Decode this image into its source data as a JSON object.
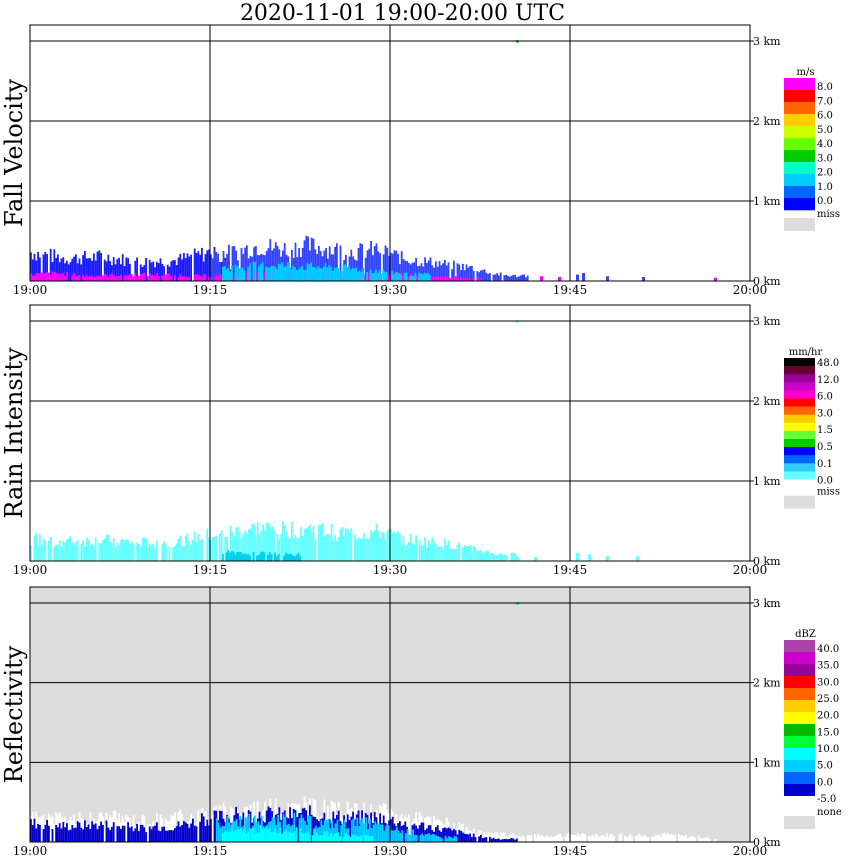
{
  "title": "2020-11-01   19:00-20:00 UTC",
  "chart_data": [
    {
      "type": "heatmap",
      "name": "fall-velocity",
      "panel_label": "Fall Velocity",
      "x": {
        "label": "",
        "ticks": [
          "19:00",
          "19:15",
          "19:30",
          "19:45",
          "20:00"
        ],
        "range_min": [
          0,
          60
        ]
      },
      "y": {
        "label": "",
        "ticks": [
          "0 km",
          "1 km",
          "2 km",
          "3 km"
        ],
        "range_km": [
          0,
          3.2
        ]
      },
      "background": "#ffffff",
      "grid": true,
      "legend": {
        "unit": "m/s",
        "position": "right",
        "labels": [
          "8.0",
          "7.0",
          "6.0",
          "5.0",
          "4.0",
          "3.0",
          "2.0",
          "1.0",
          "0.0"
        ],
        "colors": [
          "#ff00ff",
          "#ff0000",
          "#ff6600",
          "#ffcc00",
          "#ccff00",
          "#66ff00",
          "#00cc00",
          "#00ffcc",
          "#00ccff",
          "#0066ff",
          "#0000ff"
        ],
        "miss_label": "miss",
        "miss_color": "#dddddd"
      },
      "layers": [
        {
          "color": "#1a1aff",
          "segments": [
            [
              0,
              0.45
            ],
            [
              3,
              0.35
            ],
            [
              6,
              0.38
            ],
            [
              9,
              0.3
            ],
            [
              12,
              0.32
            ],
            [
              15,
              0.45
            ],
            [
              17,
              0.2
            ],
            [
              18,
              0.1
            ],
            [
              19,
              0.1
            ],
            [
              20,
              0.15
            ],
            [
              22,
              0.2
            ]
          ]
        },
        {
          "color": "#3344ff",
          "segments": [
            [
              15,
              0.42
            ],
            [
              17,
              0.45
            ],
            [
              19,
              0.55
            ],
            [
              21,
              0.5
            ],
            [
              23,
              0.55
            ],
            [
              25,
              0.5
            ],
            [
              27,
              0.45
            ],
            [
              29,
              0.5
            ],
            [
              31,
              0.35
            ],
            [
              33,
              0.3
            ],
            [
              35,
              0.25
            ],
            [
              37,
              0.2
            ],
            [
              38.5,
              0.12
            ],
            [
              40,
              0.08
            ]
          ]
        },
        {
          "color": "#ff00ff",
          "segments": [
            [
              0,
              0.1
            ],
            [
              2,
              0.12
            ],
            [
              5,
              0.08
            ],
            [
              8,
              0.1
            ],
            [
              11,
              0.1
            ],
            [
              15,
              0.08
            ],
            [
              20,
              0.12
            ],
            [
              25,
              0.08
            ],
            [
              30,
              0.12
            ],
            [
              33,
              0.08
            ],
            [
              36,
              0.05
            ]
          ]
        },
        {
          "color": "#00ccff",
          "segments": [
            [
              16,
              0.2
            ],
            [
              20,
              0.25
            ],
            [
              24,
              0.22
            ],
            [
              28,
              0.18
            ],
            [
              32,
              0.1
            ]
          ]
        }
      ],
      "sparse_marks": [
        {
          "t": 41,
          "h": 0.08,
          "color": "#3344ff"
        },
        {
          "t": 42.5,
          "h": 0.06,
          "color": "#ff00ff"
        },
        {
          "t": 44,
          "h": 0.05,
          "color": "#ff00ff"
        },
        {
          "t": 45.5,
          "h": 0.08,
          "color": "#3344ff"
        },
        {
          "t": 46,
          "h": 0.1,
          "color": "#3344ff"
        },
        {
          "t": 48,
          "h": 0.06,
          "color": "#3344ff"
        },
        {
          "t": 51,
          "h": 0.05,
          "color": "#3344ff"
        },
        {
          "t": 57,
          "h": 0.04,
          "color": "#ff00ff"
        },
        {
          "t": 40.5,
          "h": 0.03,
          "color": "#00cc00",
          "base": 2.98
        }
      ]
    },
    {
      "type": "heatmap",
      "name": "rain-intensity",
      "panel_label": "Rain Intensity",
      "x": {
        "label": "",
        "ticks": [
          "19:00",
          "19:15",
          "19:30",
          "19:45",
          "20:00"
        ],
        "range_min": [
          0,
          60
        ]
      },
      "y": {
        "label": "",
        "ticks": [
          "0 km",
          "1 km",
          "2 km",
          "3 km"
        ],
        "range_km": [
          0,
          3.2
        ]
      },
      "background": "#ffffff",
      "grid": true,
      "legend": {
        "unit": "mm/hr",
        "position": "right",
        "labels": [
          "48.0",
          "12.0",
          "6.0",
          "3.0",
          "1.5",
          "0.5",
          "0.1",
          "0.0"
        ],
        "colors": [
          "#000000",
          "#660033",
          "#990099",
          "#cc00cc",
          "#ff00cc",
          "#ff0000",
          "#ff6600",
          "#ffcc00",
          "#ffff00",
          "#66ff33",
          "#00cc00",
          "#0000ff",
          "#0066ff",
          "#33ccff",
          "#66ffff",
          "#ffffff"
        ],
        "miss_label": "miss",
        "miss_color": "#dddddd"
      },
      "layers": [
        {
          "color": "#66ffff",
          "segments": [
            [
              0,
              0.35
            ],
            [
              3,
              0.3
            ],
            [
              6,
              0.32
            ],
            [
              9,
              0.28
            ],
            [
              12,
              0.3
            ],
            [
              15,
              0.4
            ],
            [
              17,
              0.45
            ],
            [
              19,
              0.5
            ],
            [
              21,
              0.48
            ],
            [
              23,
              0.5
            ],
            [
              25,
              0.45
            ],
            [
              27,
              0.42
            ],
            [
              29,
              0.45
            ],
            [
              31,
              0.35
            ],
            [
              33,
              0.3
            ],
            [
              35,
              0.25
            ],
            [
              37,
              0.18
            ],
            [
              39,
              0.1
            ]
          ]
        },
        {
          "color": "#00ccee",
          "segments": [
            [
              16,
              0.15
            ],
            [
              19,
              0.12
            ],
            [
              21,
              0.1
            ]
          ]
        }
      ],
      "sparse_marks": [
        {
          "t": 40.5,
          "h": 0.05,
          "color": "#66ffff"
        },
        {
          "t": 42,
          "h": 0.05,
          "color": "#66ffff"
        },
        {
          "t": 45.5,
          "h": 0.1,
          "color": "#66ffff"
        },
        {
          "t": 46.5,
          "h": 0.08,
          "color": "#66ffff"
        },
        {
          "t": 48,
          "h": 0.06,
          "color": "#66ffff"
        },
        {
          "t": 50.5,
          "h": 0.06,
          "color": "#66ffff"
        },
        {
          "t": 40.5,
          "h": 0.03,
          "color": "#66ffff",
          "base": 2.98
        }
      ]
    },
    {
      "type": "heatmap",
      "name": "reflectivity",
      "panel_label": "Reflectivity",
      "x": {
        "label": "",
        "ticks": [
          "19:00",
          "19:15",
          "19:30",
          "19:45",
          "20:00"
        ],
        "range_min": [
          0,
          60
        ]
      },
      "y": {
        "label": "",
        "ticks": [
          "0 km",
          "1 km",
          "2 km",
          "3 km"
        ],
        "range_km": [
          0,
          3.2
        ]
      },
      "background": "#dddddd",
      "grid": true,
      "legend": {
        "unit": "dBZ",
        "position": "right",
        "labels": [
          "40.0",
          "35.0",
          "30.0",
          "25.0",
          "20.0",
          "15.0",
          "10.0",
          "5.0",
          "0.0",
          "-5.0"
        ],
        "colors": [
          "#aa44aa",
          "#cc00cc",
          "#990099",
          "#ff0000",
          "#ff6600",
          "#ffcc00",
          "#ffff00",
          "#00bb00",
          "#00ff33",
          "#00ffff",
          "#00ccff",
          "#0066ff",
          "#0000cc",
          "#ffffff"
        ],
        "miss_label": "none",
        "miss_color": "#dddddd"
      },
      "layers": [
        {
          "color": "#ffffff",
          "segments": [
            [
              0,
              0.4
            ],
            [
              3,
              0.35
            ],
            [
              6,
              0.4
            ],
            [
              9,
              0.35
            ],
            [
              12,
              0.4
            ],
            [
              15,
              0.45
            ],
            [
              17,
              0.5
            ],
            [
              19,
              0.55
            ],
            [
              21,
              0.52
            ],
            [
              23,
              0.55
            ],
            [
              25,
              0.5
            ],
            [
              27,
              0.48
            ],
            [
              29,
              0.5
            ],
            [
              31,
              0.4
            ],
            [
              33,
              0.35
            ],
            [
              35,
              0.3
            ],
            [
              37,
              0.15
            ],
            [
              39,
              0.12
            ],
            [
              41,
              0.1
            ],
            [
              43,
              0.1
            ],
            [
              45,
              0.12
            ],
            [
              47,
              0.1
            ],
            [
              49,
              0.12
            ],
            [
              51,
              0.1
            ],
            [
              53,
              0.12
            ],
            [
              55,
              0.08
            ]
          ]
        },
        {
          "color": "#0000cc",
          "segments": [
            [
              0,
              0.3
            ],
            [
              3,
              0.25
            ],
            [
              6,
              0.28
            ],
            [
              9,
              0.22
            ],
            [
              12,
              0.25
            ],
            [
              15,
              0.38
            ],
            [
              17,
              0.42
            ],
            [
              19,
              0.45
            ],
            [
              21,
              0.42
            ],
            [
              23,
              0.45
            ],
            [
              25,
              0.4
            ],
            [
              27,
              0.38
            ],
            [
              29,
              0.4
            ],
            [
              31,
              0.3
            ],
            [
              33,
              0.25
            ],
            [
              35,
              0.18
            ],
            [
              37,
              0.1
            ],
            [
              39,
              0.05
            ]
          ]
        },
        {
          "color": "#00ccff",
          "segments": [
            [
              15.5,
              0.3
            ],
            [
              18,
              0.35
            ],
            [
              20,
              0.32
            ],
            [
              22,
              0.35
            ],
            [
              24,
              0.3
            ],
            [
              26,
              0.28
            ],
            [
              28,
              0.3
            ],
            [
              30,
              0.2
            ],
            [
              32,
              0.15
            ],
            [
              34,
              0.08
            ]
          ]
        },
        {
          "color": "#00ffff",
          "segments": [
            [
              16,
              0.15
            ],
            [
              19,
              0.2
            ],
            [
              22,
              0.18
            ],
            [
              25,
              0.12
            ],
            [
              27,
              0.1
            ]
          ]
        }
      ],
      "sparse_marks": [
        {
          "t": 40.5,
          "h": 0.03,
          "color": "#00ccff",
          "base": 2.98
        },
        {
          "t": 56.5,
          "h": 0.04,
          "color": "#ffffff"
        },
        {
          "t": 57,
          "h": 0.04,
          "color": "#ffffff"
        }
      ]
    }
  ]
}
